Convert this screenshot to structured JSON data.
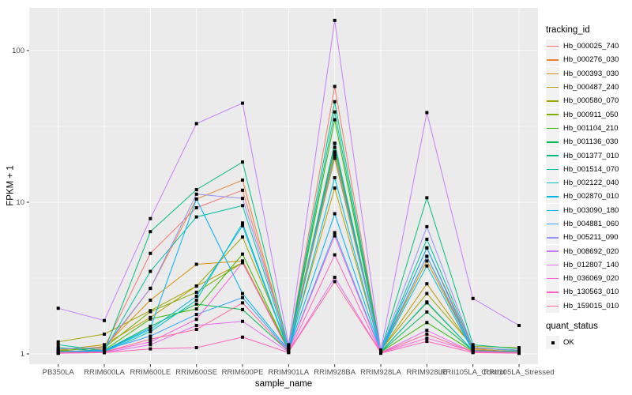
{
  "style": {
    "panel_bg": "#EBEBEB",
    "grid_color": "#FFFFFF",
    "axis_text_color": "#4D4D4D",
    "tick_color": "#333333",
    "point_color": "#000000",
    "legend_key_bg": "#F2F2F2"
  },
  "legend": {
    "tracking_title": "tracking_id",
    "quant_title": "quant_status",
    "quant_items": [
      {
        "label": "OK"
      }
    ]
  },
  "chart_data": {
    "type": "line",
    "title": "",
    "xlabel": "sample_name",
    "ylabel": "FPKM + 1",
    "y_scale": "log10",
    "ylim": [
      0.86,
      191
    ],
    "y_ticks": [
      1,
      10,
      100
    ],
    "y_tick_labels": [
      "1",
      "10",
      "100"
    ],
    "grid": true,
    "legend_position": "right",
    "point_marker": "filled-square",
    "quant_status": "OK",
    "categories": [
      "PB350LA",
      "RRIM600LA",
      "RRIM600LE",
      "RRIM600SE",
      "RRIM600PE",
      "RRIM901LA",
      "RRIM928BA",
      "RRIM928LA",
      "RRIM928LE",
      "RRII105LA_Control",
      "RRII105LA_Stressed"
    ],
    "series": [
      {
        "name": "Hb_000025_740",
        "color": "#F8766D",
        "values": [
          1.05,
          1.1,
          4.6,
          9.2,
          12.0,
          1.1,
          58.0,
          1.05,
          5.0,
          1.1,
          1.05
        ]
      },
      {
        "name": "Hb_000276_030",
        "color": "#EA8331",
        "values": [
          1.02,
          1.08,
          2.7,
          10.5,
          14.0,
          1.08,
          24.5,
          1.04,
          4.4,
          1.08,
          1.03
        ]
      },
      {
        "name": "Hb_000393_030",
        "color": "#D89000",
        "values": [
          1.04,
          1.12,
          2.26,
          3.9,
          4.1,
          1.06,
          21.5,
          1.04,
          4.1,
          1.06,
          1.04
        ]
      },
      {
        "name": "Hb_000487_240",
        "color": "#C09B00",
        "values": [
          1.06,
          1.15,
          1.74,
          2.8,
          4.0,
          1.08,
          12.4,
          1.05,
          2.9,
          1.09,
          1.06
        ]
      },
      {
        "name": "Hb_000580_070",
        "color": "#A3A500",
        "values": [
          1.2,
          1.35,
          1.93,
          2.8,
          5.9,
          1.12,
          19.5,
          1.06,
          2.5,
          1.12,
          1.1
        ]
      },
      {
        "name": "Hb_000911_050",
        "color": "#7CAE00",
        "values": [
          1.05,
          1.1,
          1.9,
          2.55,
          4.0,
          1.05,
          20.5,
          1.04,
          2.17,
          1.05,
          1.04
        ]
      },
      {
        "name": "Hb_001104_210",
        "color": "#39B600",
        "values": [
          1.03,
          1.06,
          1.7,
          1.98,
          4.55,
          1.06,
          35.0,
          1.03,
          1.61,
          1.04,
          1.02
        ]
      },
      {
        "name": "Hb_001136_030",
        "color": "#00BB4E",
        "values": [
          1.04,
          1.05,
          1.52,
          2.13,
          1.96,
          1.04,
          23.0,
          1.03,
          1.89,
          1.05,
          1.03
        ]
      },
      {
        "name": "Hb_001377_010",
        "color": "#00BF7D",
        "values": [
          1.1,
          1.04,
          6.4,
          12.1,
          18.4,
          1.1,
          46.0,
          1.05,
          10.7,
          1.15,
          1.08
        ]
      },
      {
        "name": "Hb_001514_070",
        "color": "#00C1A3",
        "values": [
          1.15,
          1.05,
          3.5,
          8.0,
          9.5,
          1.08,
          39.4,
          1.04,
          5.7,
          1.1,
          1.05
        ]
      },
      {
        "name": "Hb_002122_040",
        "color": "#00BFC4",
        "values": [
          1.02,
          1.03,
          1.4,
          2.26,
          7.3,
          1.05,
          24.4,
          1.03,
          2.2,
          1.05,
          1.02
        ]
      },
      {
        "name": "Hb_002870_010",
        "color": "#00BAE0",
        "values": [
          1.03,
          1.04,
          1.45,
          2.4,
          7.0,
          1.04,
          14.5,
          1.03,
          3.8,
          1.04,
          1.02
        ]
      },
      {
        "name": "Hb_003090_180",
        "color": "#00B0F6",
        "values": [
          1.02,
          1.05,
          1.48,
          10.5,
          2.5,
          1.06,
          8.4,
          1.04,
          5.0,
          1.05,
          1.03
        ]
      },
      {
        "name": "Hb_004881_060",
        "color": "#35A2FF",
        "values": [
          1.03,
          1.06,
          1.31,
          1.82,
          2.35,
          1.04,
          6.3,
          1.03,
          4.4,
          1.04,
          1.03
        ]
      },
      {
        "name": "Hb_005211_090",
        "color": "#9590FF",
        "values": [
          1.08,
          1.1,
          2.71,
          11.3,
          10.6,
          1.12,
          20.5,
          1.05,
          6.9,
          1.1,
          1.06
        ]
      },
      {
        "name": "Hb_008692_020",
        "color": "#C77CFF",
        "values": [
          2.0,
          1.66,
          7.8,
          33.0,
          45.0,
          1.15,
          158.0,
          1.06,
          39.0,
          2.32,
          1.54
        ]
      },
      {
        "name": "Hb_012807_140",
        "color": "#E76BF3",
        "values": [
          1.01,
          1.02,
          1.15,
          1.54,
          1.64,
          1.03,
          3.2,
          1.02,
          1.43,
          1.03,
          1.01
        ]
      },
      {
        "name": "Hb_036069_020",
        "color": "#FA62DB",
        "values": [
          1.02,
          1.03,
          1.2,
          1.69,
          4.0,
          1.04,
          6.0,
          1.02,
          1.27,
          1.04,
          1.02
        ]
      },
      {
        "name": "Hb_130563_010",
        "color": "#FF62BC",
        "values": [
          1.01,
          1.02,
          1.08,
          1.1,
          1.29,
          1.02,
          4.5,
          1.01,
          1.21,
          1.02,
          1.01
        ]
      },
      {
        "name": "Hb_159015_010",
        "color": "#FF6A98",
        "values": [
          1.02,
          1.03,
          1.25,
          1.45,
          2.17,
          1.03,
          3.0,
          1.02,
          1.35,
          1.03,
          1.02
        ]
      }
    ]
  }
}
